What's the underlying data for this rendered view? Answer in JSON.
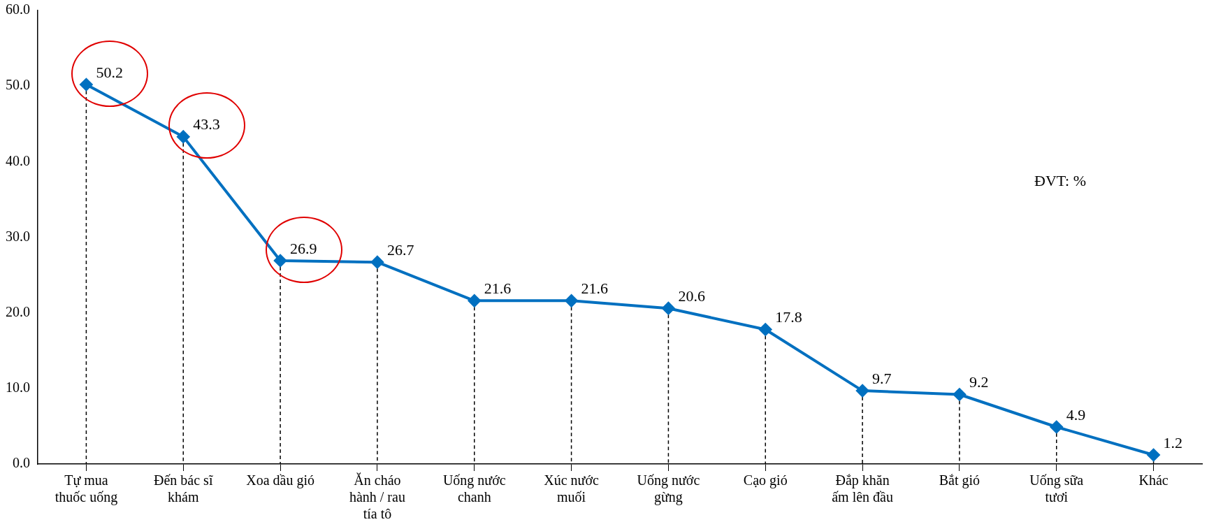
{
  "chart_data": {
    "type": "line",
    "categories": [
      "Tự mua thuốc uống",
      "Đến bác sĩ khám",
      "Xoa dầu gió",
      "Ăn cháo hành / rau tía tô",
      "Uống nước chanh",
      "Xúc nước muối",
      "Uống nước gừng",
      "Cạo gió",
      "Đắp khăn ấm lên đầu",
      "Bắt gió",
      "Uống sữa tươi",
      "Khác"
    ],
    "series": [
      {
        "color": "#0070c0",
        "values": [
          50.2,
          43.3,
          26.9,
          26.7,
          21.6,
          21.6,
          20.6,
          17.8,
          9.7,
          9.2,
          4.9,
          1.2
        ]
      }
    ],
    "ylim": [
      0,
      60
    ],
    "yticks": [
      {
        "value": 0,
        "label": "0.0"
      },
      {
        "value": 10,
        "label": "10.0"
      },
      {
        "value": 20,
        "label": "20.0"
      },
      {
        "value": 30,
        "label": "30.0"
      },
      {
        "value": 40,
        "label": "40.0"
      },
      {
        "value": 50,
        "label": "50.0"
      },
      {
        "value": 60,
        "label": "60.0"
      }
    ],
    "grid": "x",
    "legend": false,
    "marker": "diamond",
    "line_style": "solid",
    "data_labels": true,
    "annotations": [
      "ĐVT: %"
    ]
  }
}
